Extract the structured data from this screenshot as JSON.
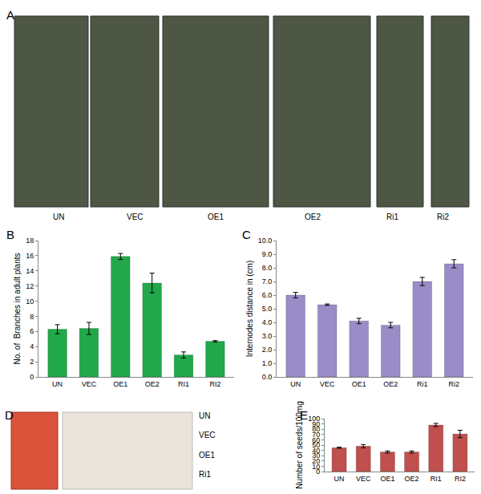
{
  "figure": {
    "panel_labels": [
      "A",
      "B",
      "C",
      "D",
      "E"
    ],
    "photos_A": [
      "UN",
      "VEC",
      "OE1",
      "OE2",
      "Ri1",
      "Ri2"
    ],
    "photos_D": [
      "UN",
      "VEC",
      "OE1",
      "Ri1"
    ]
  },
  "chart_data": [
    {
      "type": "bar",
      "y_label": "No. of  Branches in adult plants",
      "categories": [
        "UN",
        "VEC",
        "OE1",
        "OE2",
        "RI1",
        "RI2"
      ],
      "values": [
        6.3,
        6.4,
        15.9,
        12.4,
        2.9,
        4.7
      ],
      "errors": [
        0.6,
        0.8,
        0.4,
        1.3,
        0.4,
        0.1
      ],
      "color": "#21a84a",
      "ylim": [
        0,
        18
      ],
      "yticks": [
        0,
        2,
        4,
        6,
        8,
        10,
        12,
        14,
        16,
        18
      ],
      "grid": false
    },
    {
      "type": "bar",
      "y_label": "Internodes distance in (cm)",
      "categories": [
        "UN",
        "VEC",
        "OE1",
        "OE2",
        "Ri1",
        "Ri2"
      ],
      "values": [
        6.0,
        5.3,
        4.1,
        3.8,
        7.0,
        8.3
      ],
      "errors": [
        0.2,
        0.05,
        0.2,
        0.2,
        0.3,
        0.3
      ],
      "color": "#9a8cc6",
      "ylim": [
        0,
        10
      ],
      "yticks": [
        {
          "value": 0,
          "label": "0.0"
        },
        {
          "value": 1,
          "label": "1.0"
        },
        {
          "value": 2,
          "label": "2.0"
        },
        {
          "value": 3,
          "label": "3.0"
        },
        {
          "value": 4,
          "label": "4.0"
        },
        {
          "value": 5,
          "label": "5.0"
        },
        {
          "value": 6,
          "label": "6.0"
        },
        {
          "value": 7,
          "label": "7.0"
        },
        {
          "value": 8,
          "label": "8.0"
        },
        {
          "value": 9,
          "label": "9.0"
        },
        {
          "value": 10,
          "label": "10.0"
        }
      ],
      "grid": false
    },
    {
      "type": "bar",
      "y_label": "Number of seeds/100mg",
      "categories": [
        "UN",
        "VEC",
        "OE1",
        "OE2",
        "RI1",
        "RI2"
      ],
      "values": [
        45,
        48,
        37,
        37,
        88,
        71
      ],
      "errors": [
        1,
        3,
        2,
        2,
        3,
        7
      ],
      "color": "#c0504d",
      "ylim": [
        0,
        100
      ],
      "yticks": [
        0,
        10,
        20,
        30,
        40,
        50,
        60,
        70,
        80,
        90,
        100
      ],
      "grid": false
    }
  ]
}
